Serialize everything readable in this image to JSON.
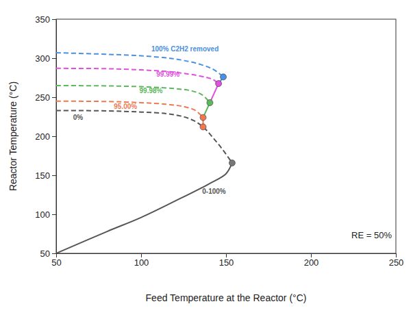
{
  "chart_data": {
    "type": "line",
    "xlabel": "Feed Temperature at the Reactor (°C)",
    "ylabel": "Reactor Temperature (°C)",
    "xlim": [
      50,
      250
    ],
    "ylim": [
      50,
      350
    ],
    "xticks": [
      50,
      100,
      150,
      200,
      250
    ],
    "yticks": [
      50,
      100,
      150,
      200,
      250,
      300,
      350
    ],
    "grid": false,
    "annotations": [
      "RE = 50%"
    ],
    "series": [
      {
        "name": "0-100%",
        "type": "line",
        "color": "#555555",
        "line_style": "solid",
        "x": [
          50,
          80,
          100,
          120,
          140,
          150,
          153.6
        ],
        "values": [
          50,
          78,
          96,
          117,
          139,
          152,
          165.8
        ]
      },
      {
        "name": "0%",
        "type": "line",
        "color": "#555555",
        "line_style": "dashed",
        "x": [
          50,
          80,
          100,
          115,
          125,
          131,
          136.5,
          142,
          148,
          153.6
        ],
        "values": [
          233,
          232.5,
          231,
          229,
          225,
          220,
          212,
          199,
          183,
          165.8
        ]
      },
      {
        "name": "95.00%",
        "type": "line",
        "color": "#f07850",
        "line_style": "dashed",
        "x": [
          50,
          80,
          100,
          115,
          125,
          132,
          136.5
        ],
        "values": [
          245,
          244.5,
          243,
          241,
          238,
          233,
          224
        ]
      },
      {
        "name": "99.98%",
        "type": "line",
        "color": "#5cb85c",
        "line_style": "dashed",
        "x": [
          50,
          80,
          100,
          120,
          130,
          136,
          140.5
        ],
        "values": [
          265,
          264.5,
          263.5,
          261,
          258,
          253,
          243
        ]
      },
      {
        "name": "99.99%",
        "type": "line",
        "color": "#e050e0",
        "line_style": "dashed",
        "x": [
          50,
          80,
          100,
          120,
          135,
          142,
          145.6
        ],
        "values": [
          287,
          286.5,
          285,
          282,
          277,
          273,
          267.5
        ]
      },
      {
        "name": "100% C2H2 removed",
        "type": "line",
        "color": "#4a90e2",
        "line_style": "dashed",
        "x": [
          50,
          80,
          100,
          120,
          135,
          143,
          148.4
        ],
        "values": [
          307,
          305,
          303,
          299,
          292,
          285,
          276
        ]
      },
      {
        "type": "line",
        "color": "#f07850",
        "line_style": "solid",
        "x": [
          136.5,
          136.5
        ],
        "values": [
          212,
          224
        ]
      },
      {
        "type": "line",
        "color": "#5cb85c",
        "line_style": "solid",
        "x": [
          136.5,
          140.5
        ],
        "values": [
          224,
          243
        ]
      },
      {
        "type": "line",
        "color": "#e050e0",
        "line_style": "solid",
        "x": [
          140.5,
          145.6
        ],
        "values": [
          243,
          267.5
        ]
      },
      {
        "type": "line",
        "color": "#4a90e2",
        "line_style": "solid",
        "x": [
          145.6,
          148.4
        ],
        "values": [
          267.5,
          276
        ]
      },
      {
        "type": "scatter",
        "marker": "circle",
        "colors": [
          "#777777",
          "#f07850",
          "#f07850",
          "#5cb85c",
          "#e050e0",
          "#4a90e2"
        ],
        "x": [
          153.6,
          136.5,
          136.5,
          140.5,
          145.6,
          148.4
        ],
        "values": [
          165.8,
          212,
          224,
          243,
          267.5,
          276
        ]
      }
    ]
  }
}
